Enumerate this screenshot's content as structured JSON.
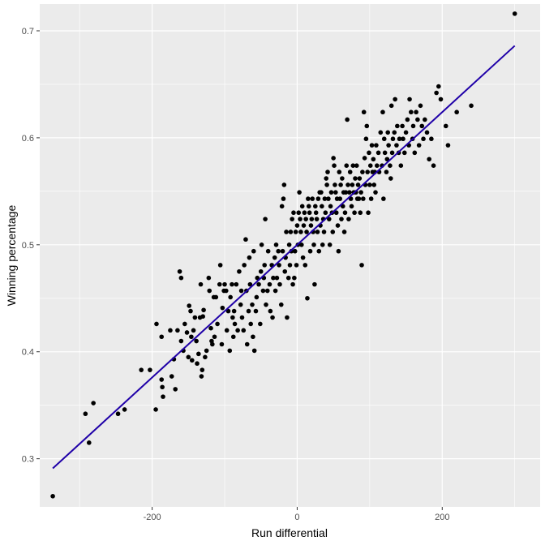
{
  "chart_data": {
    "type": "scatter",
    "title": "",
    "xlabel": "Run differential",
    "ylabel": "Winning percentage",
    "xlim": [
      -355,
      335
    ],
    "ylim": [
      0.255,
      0.725
    ],
    "x_ticks": [
      -200,
      0,
      200
    ],
    "x_tick_labels": [
      "-200",
      "0",
      "200"
    ],
    "y_ticks": [
      0.3,
      0.4,
      0.5,
      0.6,
      0.7
    ],
    "y_tick_labels": [
      "0.3",
      "0.4",
      "0.5",
      "0.6",
      "0.7"
    ],
    "x_minor": [
      -300,
      -100,
      100,
      300
    ],
    "y_minor": [
      0.35,
      0.45,
      0.55,
      0.65
    ],
    "grid": true,
    "background": "#ebebeb",
    "grid_color": "#ffffff",
    "point_color": "#000000",
    "fit_line": {
      "x": [
        -337,
        300
      ],
      "y": [
        0.291,
        0.686
      ],
      "color": "#1f00a8"
    },
    "points": [
      [
        -337,
        0.265
      ],
      [
        -292,
        0.342
      ],
      [
        -287,
        0.315
      ],
      [
        -281,
        0.352
      ],
      [
        -247,
        0.342
      ],
      [
        -238,
        0.346
      ],
      [
        -215,
        0.383
      ],
      [
        -203,
        0.383
      ],
      [
        -194,
        0.426
      ],
      [
        -195,
        0.346
      ],
      [
        -187,
        0.414
      ],
      [
        -187,
        0.374
      ],
      [
        -186,
        0.367
      ],
      [
        -185,
        0.358
      ],
      [
        -175,
        0.42
      ],
      [
        -173,
        0.377
      ],
      [
        -170,
        0.393
      ],
      [
        -168,
        0.365
      ],
      [
        -165,
        0.42
      ],
      [
        -162,
        0.475
      ],
      [
        -160,
        0.469
      ],
      [
        -160,
        0.41
      ],
      [
        -157,
        0.401
      ],
      [
        -155,
        0.426
      ],
      [
        -152,
        0.418
      ],
      [
        -150,
        0.395
      ],
      [
        -149,
        0.443
      ],
      [
        -147,
        0.438
      ],
      [
        -146,
        0.414
      ],
      [
        -145,
        0.392
      ],
      [
        -143,
        0.42
      ],
      [
        -141,
        0.432
      ],
      [
        -139,
        0.41
      ],
      [
        -138,
        0.389
      ],
      [
        -136,
        0.398
      ],
      [
        -134,
        0.432
      ],
      [
        -133,
        0.463
      ],
      [
        -132,
        0.377
      ],
      [
        -131,
        0.383
      ],
      [
        -130,
        0.433
      ],
      [
        -129,
        0.439
      ],
      [
        -127,
        0.395
      ],
      [
        -125,
        0.401
      ],
      [
        -122,
        0.469
      ],
      [
        -121,
        0.457
      ],
      [
        -119,
        0.422
      ],
      [
        -118,
        0.41
      ],
      [
        -117,
        0.407
      ],
      [
        -115,
        0.451
      ],
      [
        -114,
        0.414
      ],
      [
        -112,
        0.451
      ],
      [
        -110,
        0.426
      ],
      [
        -107,
        0.463
      ],
      [
        -106,
        0.481
      ],
      [
        -104,
        0.407
      ],
      [
        -103,
        0.441
      ],
      [
        -101,
        0.457
      ],
      [
        -100,
        0.463
      ],
      [
        -98,
        0.457
      ],
      [
        -97,
        0.42
      ],
      [
        -95,
        0.438
      ],
      [
        -93,
        0.401
      ],
      [
        -92,
        0.451
      ],
      [
        -90,
        0.463
      ],
      [
        -89,
        0.432
      ],
      [
        -88,
        0.414
      ],
      [
        -87,
        0.438
      ],
      [
        -86,
        0.426
      ],
      [
        -84,
        0.463
      ],
      [
        -82,
        0.42
      ],
      [
        -80,
        0.475
      ],
      [
        -78,
        0.444
      ],
      [
        -77,
        0.457
      ],
      [
        -76,
        0.432
      ],
      [
        -74,
        0.42
      ],
      [
        -73,
        0.481
      ],
      [
        -71,
        0.505
      ],
      [
        -70,
        0.457
      ],
      [
        -69,
        0.407
      ],
      [
        -67,
        0.438
      ],
      [
        -66,
        0.488
      ],
      [
        -65,
        0.463
      ],
      [
        -64,
        0.426
      ],
      [
        -62,
        0.444
      ],
      [
        -61,
        0.414
      ],
      [
        -60,
        0.494
      ],
      [
        -59,
        0.401
      ],
      [
        -57,
        0.438
      ],
      [
        -56,
        0.451
      ],
      [
        -55,
        0.469
      ],
      [
        -53,
        0.463
      ],
      [
        -51,
        0.426
      ],
      [
        -50,
        0.475
      ],
      [
        -49,
        0.5
      ],
      [
        -47,
        0.457
      ],
      [
        -46,
        0.469
      ],
      [
        -45,
        0.481
      ],
      [
        -44,
        0.524
      ],
      [
        -43,
        0.444
      ],
      [
        -41,
        0.457
      ],
      [
        -40,
        0.494
      ],
      [
        -38,
        0.463
      ],
      [
        -37,
        0.438
      ],
      [
        -35,
        0.481
      ],
      [
        -34,
        0.432
      ],
      [
        -33,
        0.469
      ],
      [
        -31,
        0.488
      ],
      [
        -30,
        0.457
      ],
      [
        -29,
        0.5
      ],
      [
        -28,
        0.469
      ],
      [
        -26,
        0.494
      ],
      [
        -25,
        0.481
      ],
      [
        -24,
        0.463
      ],
      [
        -22,
        0.444
      ],
      [
        -21,
        0.536
      ],
      [
        -20,
        0.494
      ],
      [
        -19,
        0.543
      ],
      [
        -18,
        0.556
      ],
      [
        -17,
        0.475
      ],
      [
        -16,
        0.488
      ],
      [
        -15,
        0.512
      ],
      [
        -14,
        0.432
      ],
      [
        -12,
        0.469
      ],
      [
        -11,
        0.5
      ],
      [
        -10,
        0.481
      ],
      [
        -9,
        0.512
      ],
      [
        -8,
        0.494
      ],
      [
        -7,
        0.524
      ],
      [
        -6,
        0.463
      ],
      [
        -5,
        0.53
      ],
      [
        -4,
        0.469
      ],
      [
        -3,
        0.494
      ],
      [
        -2,
        0.512
      ],
      [
        -1,
        0.481
      ],
      [
        0,
        0.518
      ],
      [
        1,
        0.5
      ],
      [
        2,
        0.53
      ],
      [
        3,
        0.549
      ],
      [
        4,
        0.524
      ],
      [
        5,
        0.512
      ],
      [
        6,
        0.5
      ],
      [
        7,
        0.536
      ],
      [
        8,
        0.488
      ],
      [
        9,
        0.518
      ],
      [
        10,
        0.53
      ],
      [
        11,
        0.481
      ],
      [
        12,
        0.524
      ],
      [
        13,
        0.512
      ],
      [
        14,
        0.45
      ],
      [
        15,
        0.543
      ],
      [
        16,
        0.536
      ],
      [
        17,
        0.53
      ],
      [
        18,
        0.494
      ],
      [
        19,
        0.518
      ],
      [
        20,
        0.524
      ],
      [
        21,
        0.543
      ],
      [
        22,
        0.512
      ],
      [
        23,
        0.5
      ],
      [
        24,
        0.463
      ],
      [
        25,
        0.536
      ],
      [
        26,
        0.53
      ],
      [
        27,
        0.524
      ],
      [
        28,
        0.512
      ],
      [
        29,
        0.543
      ],
      [
        30,
        0.494
      ],
      [
        31,
        0.549
      ],
      [
        32,
        0.518
      ],
      [
        33,
        0.549
      ],
      [
        34,
        0.536
      ],
      [
        35,
        0.5
      ],
      [
        36,
        0.524
      ],
      [
        37,
        0.512
      ],
      [
        38,
        0.543
      ],
      [
        39,
        0.53
      ],
      [
        40,
        0.562
      ],
      [
        41,
        0.556
      ],
      [
        42,
        0.568
      ],
      [
        43,
        0.543
      ],
      [
        44,
        0.524
      ],
      [
        45,
        0.5
      ],
      [
        46,
        0.536
      ],
      [
        47,
        0.549
      ],
      [
        48,
        0.53
      ],
      [
        49,
        0.512
      ],
      [
        50,
        0.581
      ],
      [
        51,
        0.574
      ],
      [
        52,
        0.556
      ],
      [
        53,
        0.549
      ],
      [
        54,
        0.53
      ],
      [
        55,
        0.543
      ],
      [
        56,
        0.518
      ],
      [
        57,
        0.494
      ],
      [
        58,
        0.568
      ],
      [
        59,
        0.543
      ],
      [
        60,
        0.556
      ],
      [
        61,
        0.524
      ],
      [
        62,
        0.562
      ],
      [
        63,
        0.536
      ],
      [
        64,
        0.549
      ],
      [
        65,
        0.512
      ],
      [
        66,
        0.53
      ],
      [
        67,
        0.549
      ],
      [
        68,
        0.574
      ],
      [
        69,
        0.617
      ],
      [
        70,
        0.556
      ],
      [
        71,
        0.524
      ],
      [
        72,
        0.549
      ],
      [
        73,
        0.568
      ],
      [
        74,
        0.543
      ],
      [
        75,
        0.536
      ],
      [
        76,
        0.556
      ],
      [
        77,
        0.574
      ],
      [
        78,
        0.549
      ],
      [
        79,
        0.53
      ],
      [
        80,
        0.562
      ],
      [
        81,
        0.549
      ],
      [
        82,
        0.574
      ],
      [
        83,
        0.543
      ],
      [
        84,
        0.556
      ],
      [
        85,
        0.543
      ],
      [
        86,
        0.562
      ],
      [
        87,
        0.53
      ],
      [
        88,
        0.549
      ],
      [
        89,
        0.481
      ],
      [
        90,
        0.568
      ],
      [
        91,
        0.543
      ],
      [
        92,
        0.624
      ],
      [
        93,
        0.581
      ],
      [
        94,
        0.556
      ],
      [
        95,
        0.599
      ],
      [
        96,
        0.611
      ],
      [
        97,
        0.568
      ],
      [
        98,
        0.53
      ],
      [
        99,
        0.586
      ],
      [
        100,
        0.556
      ],
      [
        101,
        0.574
      ],
      [
        102,
        0.543
      ],
      [
        103,
        0.593
      ],
      [
        104,
        0.568
      ],
      [
        105,
        0.58
      ],
      [
        106,
        0.556
      ],
      [
        107,
        0.568
      ],
      [
        108,
        0.549
      ],
      [
        109,
        0.593
      ],
      [
        110,
        0.574
      ],
      [
        112,
        0.586
      ],
      [
        113,
        0.568
      ],
      [
        115,
        0.605
      ],
      [
        117,
        0.574
      ],
      [
        118,
        0.624
      ],
      [
        119,
        0.543
      ],
      [
        120,
        0.599
      ],
      [
        121,
        0.586
      ],
      [
        123,
        0.568
      ],
      [
        124,
        0.58
      ],
      [
        125,
        0.605
      ],
      [
        126,
        0.593
      ],
      [
        128,
        0.574
      ],
      [
        129,
        0.562
      ],
      [
        130,
        0.63
      ],
      [
        131,
        0.586
      ],
      [
        132,
        0.599
      ],
      [
        134,
        0.605
      ],
      [
        135,
        0.636
      ],
      [
        137,
        0.593
      ],
      [
        138,
        0.611
      ],
      [
        140,
        0.586
      ],
      [
        141,
        0.599
      ],
      [
        143,
        0.574
      ],
      [
        145,
        0.611
      ],
      [
        146,
        0.599
      ],
      [
        148,
        0.586
      ],
      [
        150,
        0.605
      ],
      [
        152,
        0.617
      ],
      [
        154,
        0.593
      ],
      [
        155,
        0.636
      ],
      [
        157,
        0.624
      ],
      [
        159,
        0.599
      ],
      [
        160,
        0.611
      ],
      [
        162,
        0.586
      ],
      [
        164,
        0.624
      ],
      [
        166,
        0.617
      ],
      [
        168,
        0.593
      ],
      [
        170,
        0.63
      ],
      [
        172,
        0.611
      ],
      [
        174,
        0.599
      ],
      [
        176,
        0.617
      ],
      [
        179,
        0.605
      ],
      [
        182,
        0.58
      ],
      [
        185,
        0.599
      ],
      [
        188,
        0.574
      ],
      [
        192,
        0.642
      ],
      [
        195,
        0.648
      ],
      [
        198,
        0.636
      ],
      [
        205,
        0.611
      ],
      [
        208,
        0.593
      ],
      [
        220,
        0.624
      ],
      [
        240,
        0.63
      ],
      [
        300,
        0.716
      ]
    ]
  }
}
